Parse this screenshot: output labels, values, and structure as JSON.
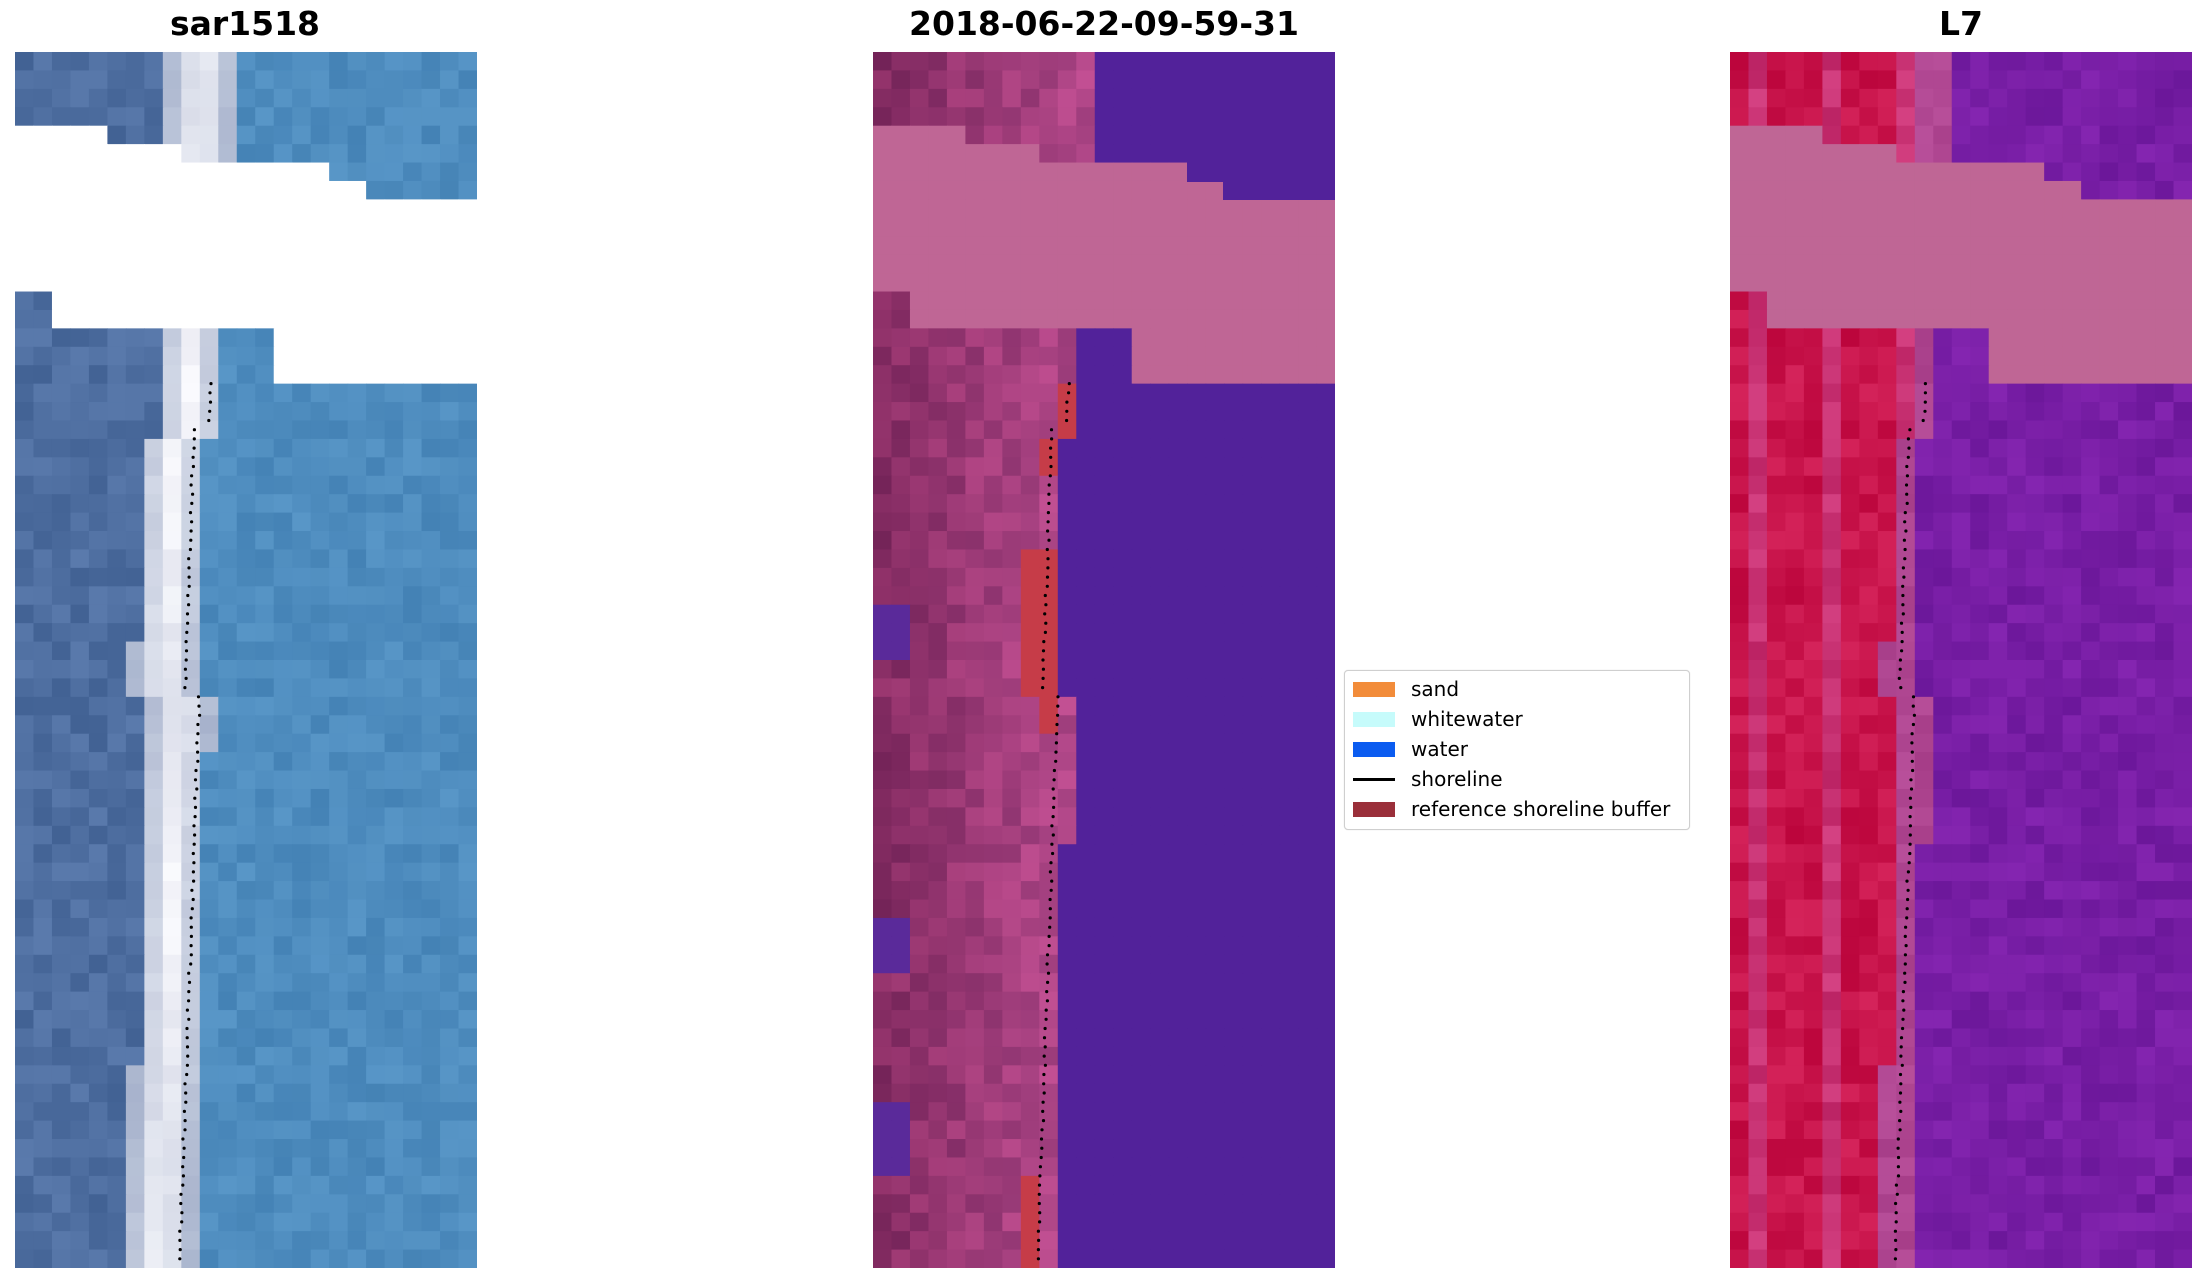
{
  "panels": [
    {
      "title": "sar1518",
      "scene": "true-color"
    },
    {
      "title": "2018-06-22-09-59-31",
      "scene": "classified"
    },
    {
      "title": "L7",
      "scene": "false-color"
    }
  ],
  "legend": {
    "items": [
      {
        "label": "sand",
        "kind": "patch",
        "color": "#f28c3a"
      },
      {
        "label": "whitewater",
        "kind": "patch",
        "color": "#c6fbfb"
      },
      {
        "label": "water",
        "kind": "patch",
        "color": "#0b5cf0"
      },
      {
        "label": "shoreline",
        "kind": "line",
        "color": "#000000"
      },
      {
        "label": "reference shoreline buffer",
        "kind": "patch",
        "color": "#9a2f3a"
      }
    ]
  },
  "colors": {
    "true_color_water": "#4f8fbf",
    "true_color_foam": "#e8eef6",
    "class_land": "#b9628f",
    "class_water": "#52229a",
    "class_buffer": "#c63c48",
    "false_color_land": "#cc1a48",
    "false_color_water": "#7b1fa2",
    "no_data": "#bf6695"
  }
}
